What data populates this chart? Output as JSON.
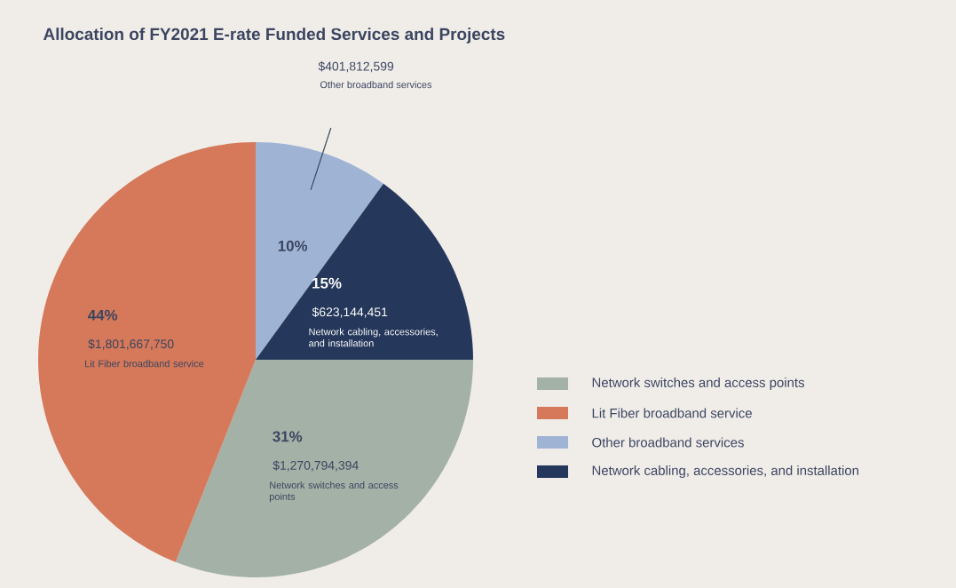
{
  "chart_data": {
    "type": "pie",
    "title": "Allocation of FY2021 E-rate Funded Services and Projects",
    "categories": [
      "Network switches and access points",
      "Lit Fiber broadband service",
      "Other broadband services",
      "Network cabling, accessories, and installation"
    ],
    "values": [
      31,
      44,
      10,
      15
    ],
    "value_labels": [
      "31%",
      "44%",
      "10%",
      "15%"
    ],
    "colors": [
      "#a3b1a6",
      "#d5795a",
      "#9fb4d4",
      "#25375a"
    ],
    "annotations": [
      "$1,270,794,394",
      "Network switches and access points",
      "$1,801,667,750",
      "Lit Fiber broadband service",
      "$401,812,599",
      "Other broadband services",
      "$623,144,451",
      "Network cabling, accessories, and installation"
    ],
    "legend": "right"
  }
}
